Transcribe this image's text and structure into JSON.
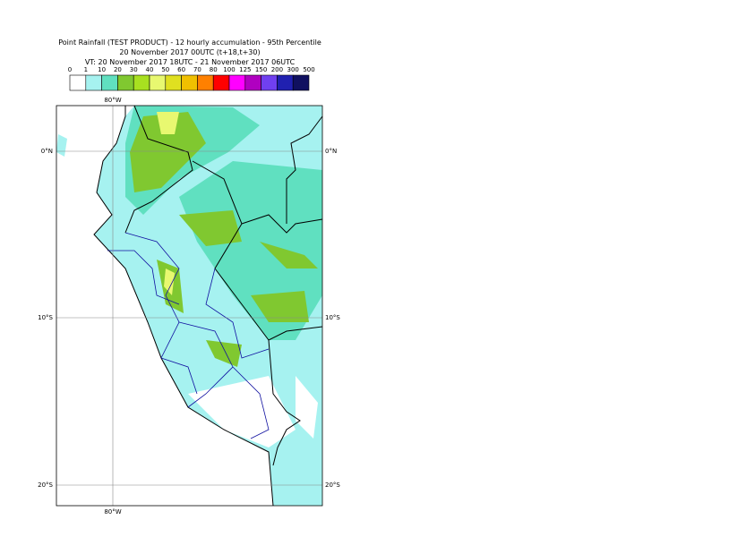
{
  "header": {
    "title": "Point Rainfall (TEST PRODUCT) - 12 hourly accumulation - 95th Percentile",
    "base": "20 November 2017 00UTC (t+18,t+30)",
    "valid": "VT: 20 November 2017 18UTC - 21 November 2017 06UTC"
  },
  "legend": {
    "labels": [
      "0",
      "1",
      "10",
      "20",
      "30",
      "40",
      "50",
      "60",
      "70",
      "80",
      "100",
      "125",
      "150",
      "200",
      "300",
      "500"
    ],
    "colors": [
      "#ffffff",
      "#a6f2f0",
      "#60e0c0",
      "#80c830",
      "#a8e020",
      "#e8f870",
      "#e0e020",
      "#f0c000",
      "#ff8000",
      "#ff0000",
      "#ff00ff",
      "#b000c0",
      "#7040f0",
      "#2020b0",
      "#101060"
    ]
  },
  "map": {
    "lon_labels": [
      "80°W"
    ],
    "lat_labels": [
      "0°N",
      "10°S",
      "20°S"
    ]
  }
}
